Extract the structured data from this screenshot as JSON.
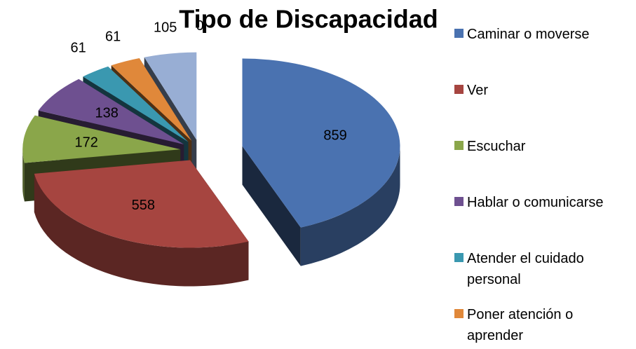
{
  "chart_data": {
    "type": "pie3d",
    "title": "Tipo de Discapacidad",
    "categories": [
      "Caminar o moverse",
      "Ver",
      "Escuchar",
      "Hablar o comunicarse",
      "Atender el cuidado personal",
      "Poner atención o aprender",
      null,
      null
    ],
    "values": [
      859,
      558,
      172,
      138,
      61,
      61,
      105,
      0
    ],
    "colors": [
      "#4a72b0",
      "#a64540",
      "#8aa64a",
      "#6e5090",
      "#3a98b0",
      "#e0883a",
      "#98aed4",
      "#d99694"
    ]
  }
}
